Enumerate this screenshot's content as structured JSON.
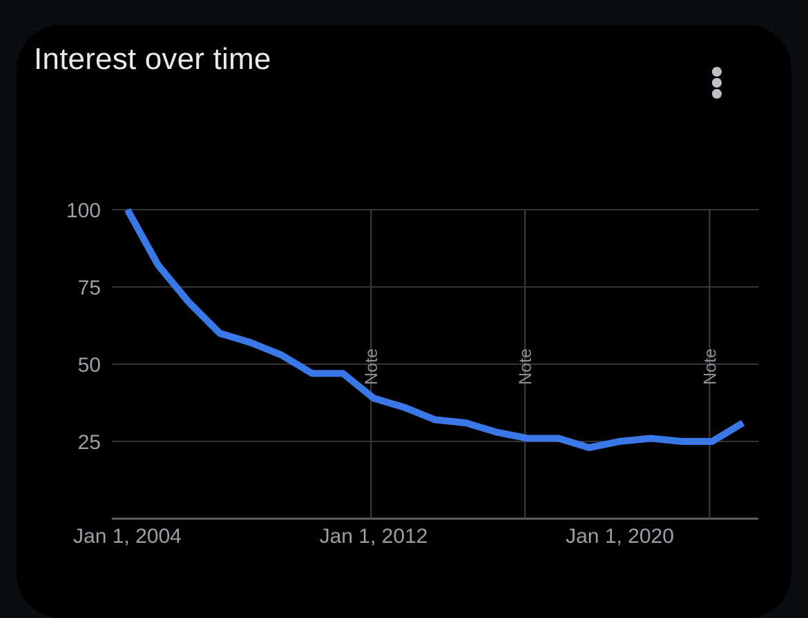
{
  "card": {
    "title": "Interest over time",
    "menu_icon": "more-vert-icon"
  },
  "chart_data": {
    "type": "line",
    "title": "Interest over time",
    "xlabel": "",
    "ylabel": "",
    "ylim": [
      0,
      100
    ],
    "xlim": [
      "2003-07-01",
      "2024-07-01"
    ],
    "y_ticks": [
      100,
      75,
      50,
      25
    ],
    "x_ticks": [
      {
        "date": "2004-01-01",
        "label": "Jan 1, 2004"
      },
      {
        "date": "2012-01-01",
        "label": "Jan 1, 2012"
      },
      {
        "date": "2020-01-01",
        "label": "Jan 1, 2020"
      }
    ],
    "notes": [
      {
        "date": "2011-12-01",
        "label": "Note"
      },
      {
        "date": "2016-12-01",
        "label": "Note"
      },
      {
        "date": "2022-12-01",
        "label": "Note"
      }
    ],
    "grid": true,
    "line_color": "#3b78e7",
    "series": [
      {
        "x": [
          "2004-01-01",
          "2005-01-01",
          "2006-01-01",
          "2007-01-01",
          "2008-01-01",
          "2009-01-01",
          "2010-01-01",
          "2011-01-01",
          "2012-01-01",
          "2013-01-01",
          "2014-01-01",
          "2015-01-01",
          "2016-01-01",
          "2017-01-01",
          "2018-01-01",
          "2019-01-01",
          "2020-01-01",
          "2021-01-01",
          "2022-01-01",
          "2023-01-01",
          "2024-01-01"
        ],
        "values": [
          100,
          82,
          70,
          60,
          57,
          53,
          47,
          47,
          39,
          36,
          32,
          31,
          28,
          26,
          26,
          23,
          25,
          26,
          25,
          25,
          31
        ]
      }
    ]
  }
}
